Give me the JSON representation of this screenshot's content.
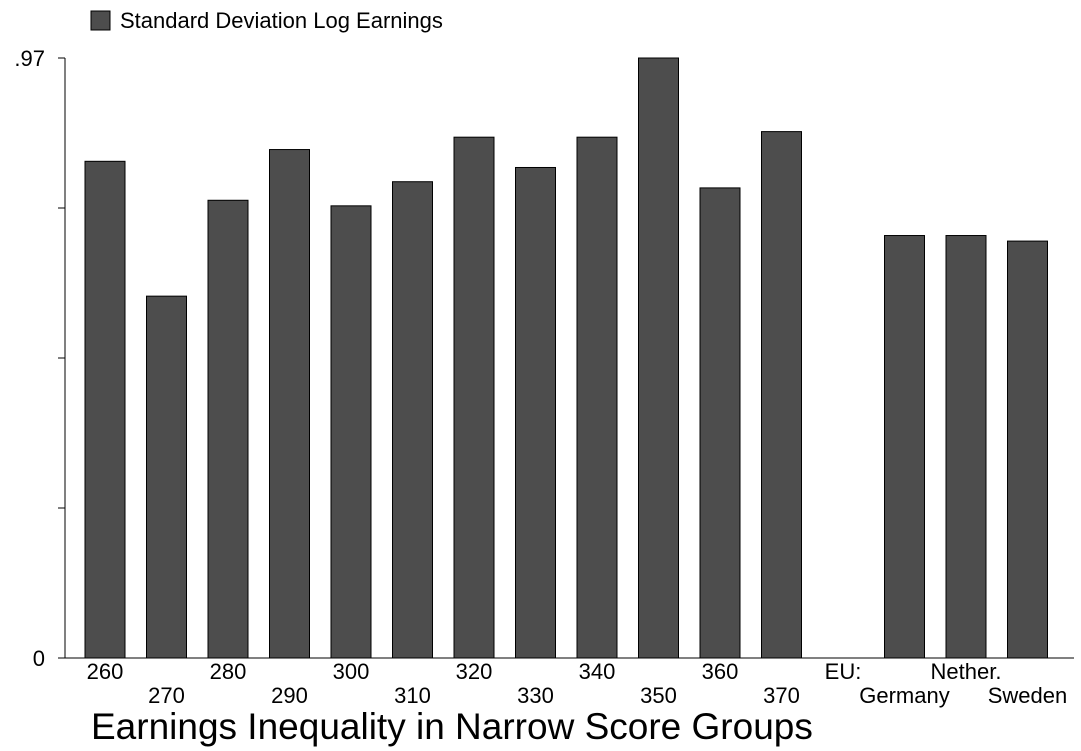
{
  "chart_data": {
    "type": "bar",
    "title": "Earnings Inequality in Narrow Score Groups",
    "legend": {
      "label": "Standard Deviation Log Earnings",
      "placement": "top-left"
    },
    "ylim": [
      0,
      0.97
    ],
    "yticks": [
      {
        "value": 0,
        "label": "0"
      },
      {
        "value": 0.2425,
        "label": ""
      },
      {
        "value": 0.485,
        "label": ""
      },
      {
        "value": 0.7275,
        "label": ""
      },
      {
        "value": 0.97,
        "label": ".97"
      }
    ],
    "bar_color": "#4d4d4d",
    "categories": [
      {
        "label": "260",
        "row": 0,
        "value": 0.803,
        "slot": 0
      },
      {
        "label": "270",
        "row": 1,
        "value": 0.585,
        "slot": 1
      },
      {
        "label": "280",
        "row": 0,
        "value": 0.74,
        "slot": 2
      },
      {
        "label": "290",
        "row": 1,
        "value": 0.822,
        "slot": 3
      },
      {
        "label": "300",
        "row": 0,
        "value": 0.731,
        "slot": 4
      },
      {
        "label": "310",
        "row": 1,
        "value": 0.77,
        "slot": 5
      },
      {
        "label": "320",
        "row": 0,
        "value": 0.842,
        "slot": 6
      },
      {
        "label": "330",
        "row": 1,
        "value": 0.793,
        "slot": 7
      },
      {
        "label": "340",
        "row": 0,
        "value": 0.842,
        "slot": 8
      },
      {
        "label": "350",
        "row": 1,
        "value": 0.97,
        "slot": 9
      },
      {
        "label": "360",
        "row": 0,
        "value": 0.76,
        "slot": 10
      },
      {
        "label": "370",
        "row": 1,
        "value": 0.851,
        "slot": 11
      },
      {
        "label": "EU:",
        "row": 0,
        "value": null,
        "slot": 12
      },
      {
        "label": "Germany",
        "row": 1,
        "value": 0.683,
        "slot": 13
      },
      {
        "label": "Nether.",
        "row": 0,
        "value": 0.683,
        "slot": 14
      },
      {
        "label": "Sweden",
        "row": 1,
        "value": 0.674,
        "slot": 15
      }
    ],
    "grid": false
  }
}
